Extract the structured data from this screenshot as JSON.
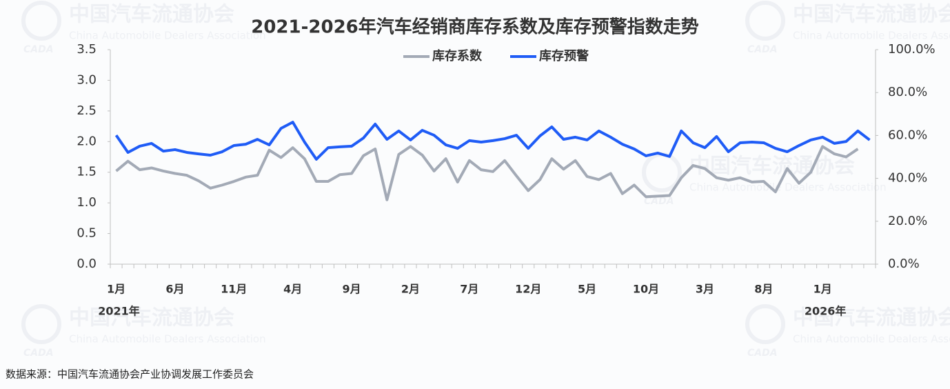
{
  "chart_data": {
    "type": "line",
    "title": "2021-2026年汽车经销商库存系数及库存预警指数走势",
    "categories": [
      "1月",
      null,
      null,
      null,
      null,
      "6月",
      null,
      null,
      null,
      null,
      "11月",
      null,
      null,
      null,
      null,
      "4月",
      null,
      null,
      null,
      null,
      "9月",
      null,
      null,
      null,
      null,
      "2月",
      null,
      null,
      null,
      null,
      "7月",
      null,
      null,
      null,
      null,
      "12月",
      null,
      null,
      null,
      null,
      "5月",
      null,
      null,
      null,
      null,
      "10月",
      null,
      null,
      null,
      null,
      "3月",
      null,
      null,
      null,
      null,
      "8月",
      null,
      null,
      null,
      null,
      "1月",
      null,
      null,
      null,
      null
    ],
    "category_years": [
      "2021年",
      null,
      null,
      null,
      null,
      null,
      null,
      null,
      null,
      null,
      null,
      null,
      null,
      null,
      null,
      null,
      null,
      null,
      null,
      null,
      null,
      null,
      null,
      null,
      null,
      null,
      null,
      null,
      null,
      null,
      null,
      null,
      null,
      null,
      null,
      null,
      null,
      null,
      null,
      null,
      null,
      null,
      null,
      null,
      null,
      null,
      null,
      null,
      null,
      null,
      null,
      null,
      null,
      null,
      null,
      null,
      null,
      null,
      null,
      null,
      "2026年",
      null,
      null,
      null,
      null
    ],
    "series": [
      {
        "name": "库存系数",
        "color": "#a3aab6",
        "axis": "y",
        "values": [
          1.52,
          1.68,
          1.54,
          1.57,
          1.52,
          1.48,
          1.45,
          1.36,
          1.24,
          1.29,
          1.35,
          1.42,
          1.45,
          1.86,
          1.74,
          1.9,
          1.72,
          1.35,
          1.35,
          1.46,
          1.48,
          1.77,
          1.88,
          1.05,
          1.79,
          1.92,
          1.78,
          1.52,
          1.72,
          1.34,
          1.69,
          1.54,
          1.51,
          1.69,
          1.44,
          1.2,
          1.38,
          1.72,
          1.55,
          1.69,
          1.43,
          1.38,
          1.48,
          1.15,
          1.29,
          1.1,
          1.11,
          1.12,
          1.41,
          1.61,
          1.56,
          1.41,
          1.37,
          1.41,
          1.34,
          1.35,
          1.18,
          1.56,
          1.32,
          1.5,
          1.92,
          1.8,
          1.75,
          1.88,
          null
        ]
      },
      {
        "name": "库存预警",
        "color": "#1f5cf6",
        "axis": "y2",
        "values": [
          60.1,
          52.1,
          55.0,
          56.3,
          52.7,
          53.4,
          52.1,
          51.4,
          50.8,
          52.4,
          55.3,
          55.9,
          58.2,
          55.6,
          63.3,
          66.2,
          56.9,
          48.9,
          54.3,
          54.7,
          55.0,
          58.8,
          65.3,
          58.2,
          62.1,
          57.9,
          62.4,
          60.1,
          55.6,
          54.0,
          57.6,
          56.9,
          57.6,
          58.5,
          60.1,
          54.0,
          59.8,
          64.0,
          58.2,
          59.2,
          57.9,
          62.1,
          59.2,
          55.9,
          53.7,
          50.5,
          51.8,
          50.2,
          62.1,
          56.6,
          54.3,
          59.5,
          52.4,
          56.6,
          56.9,
          56.6,
          54.0,
          52.4,
          55.3,
          57.9,
          59.2,
          56.3,
          57.2,
          62.1,
          57.9
        ]
      }
    ],
    "ylim": [
      0,
      3.5
    ],
    "yticks": [
      {
        "value": 0,
        "label": "0.0"
      },
      0.5,
      {
        "value": 1,
        "label": "1.0"
      },
      1.5,
      {
        "value": 2,
        "label": "2.0"
      },
      2.5,
      {
        "value": 3,
        "label": "3.0"
      },
      3.5
    ],
    "y2lim": [
      0,
      100
    ],
    "y2ticks": [
      {
        "value": 0,
        "label": "0.0%"
      },
      {
        "value": 20,
        "label": "20.0%"
      },
      {
        "value": 40,
        "label": "40.0%"
      },
      {
        "value": 60,
        "label": "60.0%"
      },
      {
        "value": 80,
        "label": "80.0%"
      },
      {
        "value": 100,
        "label": "100.0%"
      }
    ],
    "legend": "top",
    "grid": false,
    "source": "数据来源：中国汽车流通协会产业协调发展工作委员会"
  },
  "watermark": {
    "logo": "CADA",
    "name": "中国汽车流通协会",
    "name_en": "China Automobile Dealers Association"
  }
}
